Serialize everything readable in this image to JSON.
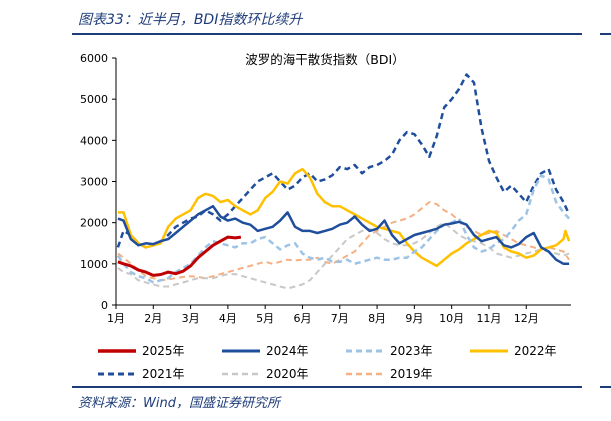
{
  "figure": {
    "title": "图表33：近半月，BDI指数环比续升",
    "source": "资料来源：Wind，国盛证券研究所"
  },
  "colors": {
    "s2025": "#c00000",
    "s2024": "#1f4e9c",
    "s2023": "#9dc3e6",
    "s2022": "#ffc000",
    "s2021": "#1f4e9c",
    "s2020": "#c8c8c8",
    "s2019": "#f4b183",
    "rule": "#1f3c7a",
    "axis": "#000000"
  },
  "chart_data": {
    "type": "line",
    "title": "波罗的海干散货指数（BDI）",
    "xlabel": "",
    "ylabel": "",
    "x_domain": [
      0,
      12.2
    ],
    "ylim": [
      0,
      6000
    ],
    "yticks": [
      0,
      1000,
      2000,
      3000,
      4000,
      5000,
      6000
    ],
    "categories": [
      "1月",
      "2月",
      "3月",
      "4月",
      "5月",
      "6月",
      "7月",
      "8月",
      "9月",
      "10月",
      "11月",
      "12月"
    ],
    "legend_position": "bottom",
    "series": [
      {
        "name": "2025年",
        "style": "solid",
        "width": 3,
        "color_key": "s2025",
        "x": [
          0.05,
          0.2,
          0.4,
          0.6,
          0.8,
          1.0,
          1.2,
          1.4,
          1.6,
          1.8,
          2.0,
          2.2,
          2.4,
          2.6,
          2.8,
          3.0,
          3.2,
          3.35
        ],
        "y": [
          1050,
          1000,
          950,
          850,
          800,
          720,
          740,
          800,
          760,
          820,
          950,
          1150,
          1300,
          1450,
          1550,
          1650,
          1630,
          1650
        ]
      },
      {
        "name": "2024年",
        "style": "solid",
        "width": 2.5,
        "color_key": "s2024",
        "x": [
          0.05,
          0.2,
          0.4,
          0.6,
          0.8,
          1.0,
          1.2,
          1.4,
          1.6,
          1.8,
          2.0,
          2.2,
          2.4,
          2.6,
          2.8,
          3.0,
          3.2,
          3.4,
          3.6,
          3.8,
          4.0,
          4.2,
          4.4,
          4.6,
          4.8,
          5.0,
          5.2,
          5.4,
          5.6,
          5.8,
          6.0,
          6.2,
          6.4,
          6.6,
          6.8,
          7.0,
          7.2,
          7.4,
          7.6,
          7.8,
          8.0,
          8.2,
          8.4,
          8.6,
          8.8,
          9.0,
          9.2,
          9.4,
          9.6,
          9.8,
          10.0,
          10.2,
          10.4,
          10.6,
          10.8,
          11.0,
          11.2,
          11.4,
          11.6,
          11.8,
          12.0,
          12.15
        ],
        "y": [
          2100,
          2050,
          1600,
          1450,
          1500,
          1480,
          1550,
          1600,
          1750,
          1900,
          2050,
          2200,
          2300,
          2400,
          2150,
          2050,
          2100,
          2000,
          1950,
          1800,
          1850,
          1900,
          2050,
          2250,
          1900,
          1800,
          1800,
          1750,
          1800,
          1850,
          1950,
          2000,
          2150,
          1950,
          1800,
          1850,
          2050,
          1700,
          1500,
          1600,
          1700,
          1750,
          1800,
          1850,
          1950,
          1980,
          2020,
          1950,
          1700,
          1550,
          1600,
          1650,
          1450,
          1400,
          1480,
          1650,
          1750,
          1400,
          1300,
          1100,
          1000,
          1000
        ]
      },
      {
        "name": "2023年",
        "style": "dashed",
        "width": 2.5,
        "color_key": "s2023",
        "x": [
          0.05,
          0.2,
          0.4,
          0.6,
          0.8,
          1.0,
          1.2,
          1.4,
          1.6,
          1.8,
          2.0,
          2.2,
          2.4,
          2.6,
          2.8,
          3.0,
          3.2,
          3.4,
          3.6,
          3.8,
          4.0,
          4.2,
          4.4,
          4.6,
          4.8,
          5.0,
          5.2,
          5.4,
          5.6,
          5.8,
          6.0,
          6.2,
          6.4,
          6.6,
          6.8,
          7.0,
          7.2,
          7.4,
          7.6,
          7.8,
          8.0,
          8.2,
          8.4,
          8.6,
          8.8,
          9.0,
          9.2,
          9.4,
          9.6,
          9.8,
          10.0,
          10.2,
          10.4,
          10.6,
          10.8,
          11.0,
          11.2,
          11.4,
          11.6,
          11.8,
          12.0,
          12.15
        ],
        "y": [
          1200,
          1000,
          800,
          700,
          650,
          550,
          600,
          650,
          800,
          900,
          1000,
          1200,
          1400,
          1550,
          1500,
          1450,
          1400,
          1500,
          1500,
          1600,
          1650,
          1500,
          1350,
          1450,
          1500,
          1250,
          1150,
          1100,
          1150,
          1050,
          1050,
          1100,
          1000,
          1050,
          1100,
          1150,
          1100,
          1100,
          1150,
          1150,
          1300,
          1400,
          1600,
          1800,
          1950,
          2000,
          2100,
          1700,
          1400,
          1300,
          1350,
          1500,
          1600,
          1800,
          2050,
          2200,
          2800,
          3150,
          3050,
          2500,
          2250,
          2100
        ]
      },
      {
        "name": "2022年",
        "style": "solid",
        "width": 2.5,
        "color_key": "s2022",
        "x": [
          0.05,
          0.2,
          0.4,
          0.6,
          0.8,
          1.0,
          1.2,
          1.4,
          1.6,
          1.8,
          2.0,
          2.2,
          2.4,
          2.6,
          2.8,
          3.0,
          3.2,
          3.4,
          3.6,
          3.8,
          4.0,
          4.2,
          4.4,
          4.6,
          4.8,
          5.0,
          5.2,
          5.4,
          5.6,
          5.8,
          6.0,
          6.2,
          6.4,
          6.6,
          6.8,
          7.0,
          7.2,
          7.4,
          7.6,
          7.8,
          8.0,
          8.2,
          8.4,
          8.6,
          8.8,
          9.0,
          9.2,
          9.4,
          9.6,
          9.8,
          10.0,
          10.2,
          10.4,
          10.6,
          10.8,
          11.0,
          11.2,
          11.4,
          11.6,
          11.8,
          12.0,
          12.05,
          12.15
        ],
        "y": [
          2250,
          2250,
          1700,
          1500,
          1400,
          1450,
          1500,
          1900,
          2100,
          2200,
          2300,
          2600,
          2700,
          2650,
          2500,
          2550,
          2400,
          2300,
          2200,
          2300,
          2600,
          2750,
          3000,
          2950,
          3200,
          3300,
          3100,
          2700,
          2500,
          2400,
          2400,
          2300,
          2200,
          2100,
          2000,
          1900,
          1850,
          1800,
          1750,
          1500,
          1300,
          1150,
          1050,
          950,
          1100,
          1250,
          1350,
          1500,
          1600,
          1700,
          1800,
          1750,
          1400,
          1300,
          1250,
          1150,
          1200,
          1350,
          1400,
          1450,
          1600,
          1800,
          1550
        ]
      },
      {
        "name": "2021年",
        "style": "dashed",
        "width": 2.5,
        "color_key": "s2021",
        "x": [
          0.05,
          0.2,
          0.4,
          0.6,
          0.8,
          1.0,
          1.2,
          1.4,
          1.6,
          1.8,
          2.0,
          2.2,
          2.4,
          2.6,
          2.8,
          3.0,
          3.2,
          3.4,
          3.6,
          3.8,
          4.0,
          4.2,
          4.4,
          4.6,
          4.8,
          5.0,
          5.2,
          5.4,
          5.6,
          5.8,
          6.0,
          6.2,
          6.4,
          6.6,
          6.8,
          7.0,
          7.2,
          7.4,
          7.6,
          7.8,
          8.0,
          8.2,
          8.4,
          8.6,
          8.8,
          9.0,
          9.2,
          9.4,
          9.6,
          9.8,
          10.0,
          10.2,
          10.4,
          10.6,
          10.8,
          11.0,
          11.2,
          11.4,
          11.6,
          11.8,
          12.0,
          12.15
        ],
        "y": [
          1400,
          1800,
          1700,
          1500,
          1400,
          1450,
          1550,
          1700,
          1900,
          2000,
          2100,
          2150,
          2300,
          2200,
          2050,
          2200,
          2400,
          2600,
          2800,
          3000,
          3100,
          3200,
          3000,
          2800,
          2900,
          3100,
          3200,
          3000,
          3050,
          3150,
          3350,
          3300,
          3400,
          3200,
          3350,
          3400,
          3500,
          3650,
          4000,
          4200,
          4150,
          3900,
          3600,
          4100,
          4800,
          5000,
          5250,
          5600,
          5400,
          4300,
          3500,
          3100,
          2750,
          2900,
          2700,
          2500,
          2900,
          3200,
          3300,
          2800,
          2500,
          2200
        ]
      },
      {
        "name": "2020年",
        "style": "dashed",
        "width": 2,
        "color_key": "s2020",
        "x": [
          0.05,
          0.2,
          0.4,
          0.6,
          0.8,
          1.0,
          1.2,
          1.4,
          1.6,
          1.8,
          2.0,
          2.2,
          2.4,
          2.6,
          2.8,
          3.0,
          3.2,
          3.4,
          3.6,
          3.8,
          4.0,
          4.2,
          4.4,
          4.6,
          4.8,
          5.0,
          5.2,
          5.4,
          5.6,
          5.8,
          6.0,
          6.2,
          6.4,
          6.6,
          6.8,
          7.0,
          7.2,
          7.4,
          7.6,
          7.8,
          8.0,
          8.2,
          8.4,
          8.6,
          8.8,
          9.0,
          9.2,
          9.4,
          9.6,
          9.8,
          10.0,
          10.2,
          10.4,
          10.6,
          10.8,
          11.0,
          11.2,
          11.4,
          11.6,
          11.8,
          12.0,
          12.15
        ],
        "y": [
          900,
          800,
          750,
          600,
          550,
          500,
          450,
          450,
          500,
          550,
          600,
          650,
          650,
          650,
          700,
          750,
          750,
          700,
          650,
          600,
          550,
          500,
          450,
          400,
          450,
          500,
          600,
          800,
          1000,
          1200,
          1400,
          1600,
          1700,
          1800,
          1850,
          1750,
          1600,
          1500,
          1450,
          1450,
          1500,
          1600,
          1750,
          1900,
          2000,
          1850,
          1700,
          1600,
          1550,
          1500,
          1400,
          1250,
          1200,
          1150,
          1200,
          1250,
          1300,
          1350,
          1300,
          1250,
          1200,
          1250
        ]
      },
      {
        "name": "2019年",
        "style": "dashed",
        "width": 2,
        "color_key": "s2019",
        "x": [
          0.05,
          0.2,
          0.4,
          0.6,
          0.8,
          1.0,
          1.2,
          1.4,
          1.6,
          1.8,
          2.0,
          2.2,
          2.4,
          2.6,
          2.8,
          3.0,
          3.2,
          3.4,
          3.6,
          3.8,
          4.0,
          4.2,
          4.4,
          4.6,
          4.8,
          5.0,
          5.2,
          5.4,
          5.6,
          5.8,
          6.0,
          6.2,
          6.4,
          6.6,
          6.8,
          7.0,
          7.2,
          7.4,
          7.6,
          7.8,
          8.0,
          8.2,
          8.4,
          8.6,
          8.8,
          9.0,
          9.2,
          9.4,
          9.6,
          9.8,
          10.0,
          10.2,
          10.4,
          10.6,
          10.8,
          11.0,
          11.2,
          11.4,
          11.6,
          11.8,
          12.0,
          12.15
        ],
        "y": [
          1250,
          1150,
          1000,
          850,
          700,
          650,
          600,
          620,
          650,
          680,
          700,
          680,
          650,
          700,
          750,
          800,
          850,
          900,
          950,
          1000,
          1050,
          1000,
          1050,
          1100,
          1080,
          1100,
          1100,
          1150,
          1050,
          1000,
          1100,
          1200,
          1300,
          1500,
          1700,
          1800,
          1900,
          2000,
          2050,
          2100,
          2200,
          2350,
          2500,
          2450,
          2300,
          2200,
          2050,
          1900,
          1800,
          1700,
          1750,
          1800,
          1700,
          1600,
          1500,
          1450,
          1400,
          1350,
          1400,
          1350,
          1300,
          1100
        ]
      }
    ]
  }
}
